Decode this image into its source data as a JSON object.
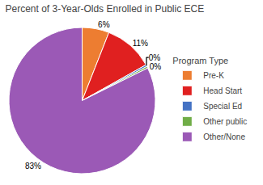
{
  "chart_data": {
    "type": "pie",
    "title": "Percent of 3-Year-Olds Enrolled in Public ECE",
    "categories": [
      "Pre-K",
      "Head Start",
      "Special Ed",
      "Other public",
      "Other/None"
    ],
    "values": [
      6,
      11,
      0.4,
      0.4,
      83
    ],
    "value_labels": [
      "6%",
      "11%",
      "0%",
      "0%",
      "83%"
    ],
    "colors": [
      "#ed7d31",
      "#e02020",
      "#4472c4",
      "#70ad47",
      "#9b59b6"
    ],
    "data_labels": true,
    "legend": "right",
    "legend_title": "Program Type"
  }
}
